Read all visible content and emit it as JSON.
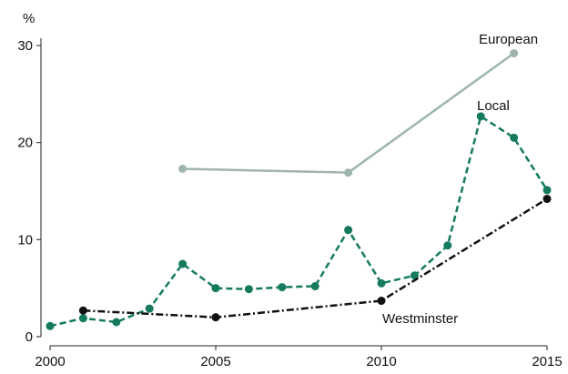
{
  "chart_data": {
    "type": "line",
    "title": "",
    "xlabel": "",
    "ylabel": "%",
    "xlim": [
      2000,
      2015
    ],
    "ylim": [
      0,
      30
    ],
    "xticks": [
      "2000",
      "2005",
      "2010",
      "2015"
    ],
    "yticks": [
      "0",
      "10",
      "20",
      "30"
    ],
    "grid": false,
    "legend": "inline labels",
    "series": [
      {
        "name": "European",
        "color": "#9fb5ab",
        "dash": "solid",
        "points": [
          [
            2004,
            17.3
          ],
          [
            2009,
            16.9
          ],
          [
            2014,
            29.2
          ]
        ]
      },
      {
        "name": "Local",
        "color": "#157a5e",
        "dash": "dashed",
        "points": [
          [
            2000,
            1.1
          ],
          [
            2001,
            1.9
          ],
          [
            2002,
            1.5
          ],
          [
            2003,
            2.9
          ],
          [
            2004,
            7.5
          ],
          [
            2005,
            5.0
          ],
          [
            2006,
            4.9
          ],
          [
            2007,
            5.1
          ],
          [
            2008,
            5.2
          ],
          [
            2009,
            11.0
          ],
          [
            2010,
            5.5
          ],
          [
            2011,
            6.3
          ],
          [
            2012,
            9.4
          ],
          [
            2013,
            22.7
          ],
          [
            2014,
            20.5
          ],
          [
            2015,
            15.1
          ]
        ]
      },
      {
        "name": "Westminster",
        "color": "#111111",
        "dash": "dashdot",
        "points": [
          [
            2001,
            2.7
          ],
          [
            2005,
            2.0
          ],
          [
            2010,
            3.7
          ],
          [
            2015,
            14.2
          ]
        ]
      }
    ]
  }
}
